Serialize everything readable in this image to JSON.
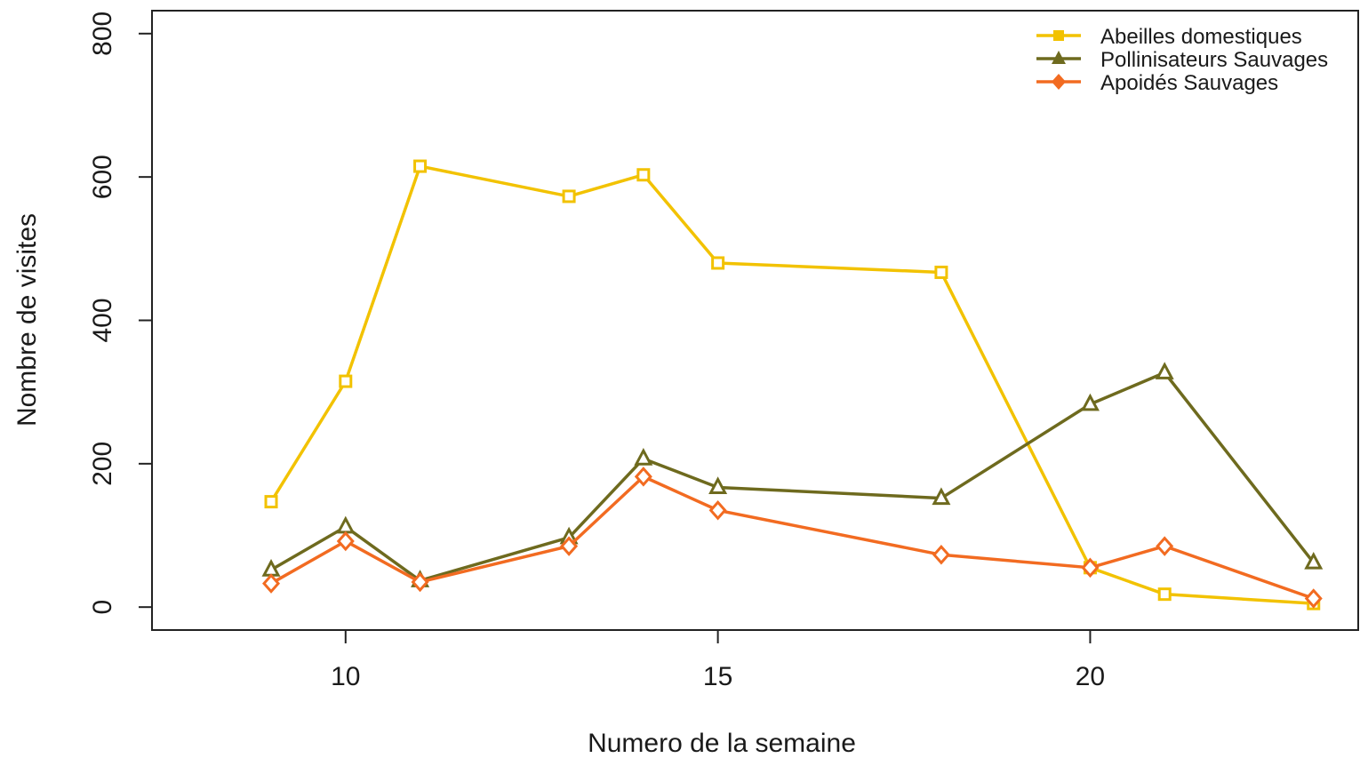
{
  "chart_data": {
    "type": "line",
    "title": "",
    "xlabel": "Numero de la semaine",
    "ylabel": "Nombre de visites",
    "xlim": [
      7.4,
      23.6
    ],
    "ylim": [
      -32,
      832
    ],
    "xticks": [
      10,
      15,
      20
    ],
    "yticks": [
      0,
      200,
      400,
      600,
      800
    ],
    "grid": false,
    "legend_position": "top-right",
    "series": [
      {
        "name": "Abeilles domestiques",
        "color": "#F2C200",
        "marker": "square",
        "x": [
          9,
          10,
          11,
          13,
          14,
          15,
          18,
          20,
          21,
          23
        ],
        "y": [
          147,
          315,
          615,
          573,
          603,
          480,
          467,
          55,
          18,
          5
        ]
      },
      {
        "name": "Pollinisateurs Sauvages",
        "color": "#6E6A1E",
        "marker": "triangle",
        "x": [
          9,
          10,
          11,
          13,
          14,
          15,
          18,
          20,
          21,
          23
        ],
        "y": [
          52,
          112,
          37,
          97,
          207,
          167,
          152,
          283,
          327,
          62
        ]
      },
      {
        "name": "Apoidés Sauvages",
        "color": "#F26B21",
        "marker": "diamond",
        "x": [
          9,
          10,
          11,
          13,
          14,
          15,
          18,
          20,
          21,
          23
        ],
        "y": [
          33,
          92,
          35,
          85,
          182,
          135,
          73,
          55,
          85,
          12
        ]
      }
    ]
  }
}
